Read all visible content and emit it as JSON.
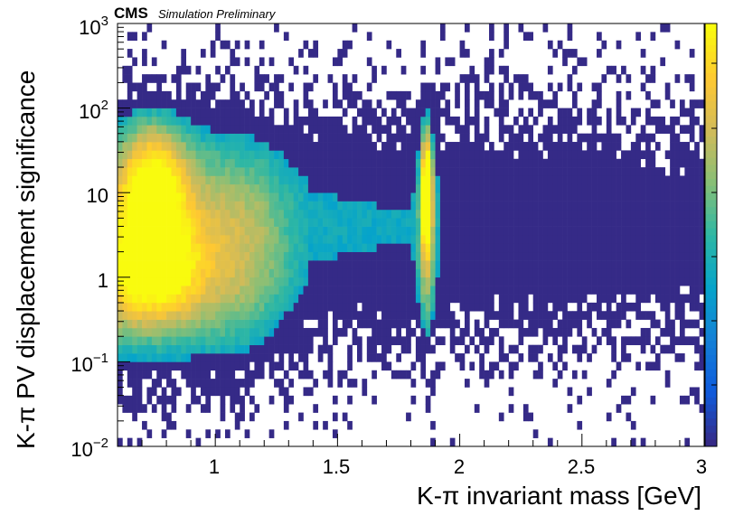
{
  "chart_data": {
    "type": "heatmap",
    "experiment": "CMS",
    "experiment_status": "Simulation Preliminary",
    "xlabel": "K-π invariant mass [GeV]",
    "ylabel": "K-π PV displacement significance",
    "xlim": [
      0.6,
      3.0
    ],
    "ylim": [
      0.01,
      1000
    ],
    "y_scale": "log",
    "z_scale": "log",
    "x_ticks": [
      "1",
      "1.5",
      "2",
      "2.5",
      "3"
    ],
    "y_ticks": [
      {
        "base": "10",
        "exp": "−2"
      },
      {
        "base": "10",
        "exp": "−1"
      },
      {
        "base": "1",
        "exp": ""
      },
      {
        "base": "10",
        "exp": ""
      },
      {
        "base": "10",
        "exp": "2"
      },
      {
        "base": "10",
        "exp": "3"
      }
    ],
    "bins": {
      "nx": 120,
      "ny": 50
    },
    "features": [
      {
        "name": "low-mass band",
        "x_range": [
          0.6,
          1.35
        ],
        "peak_x": 0.75,
        "peak_y": 10
      },
      {
        "name": "D0 peak",
        "x": 1.865,
        "peak_y": 10
      }
    ],
    "colormap": [
      "#352a87",
      "#0f5cdd",
      "#1481d6",
      "#06a4ca",
      "#2eb7a4",
      "#87bf77",
      "#d1bb59",
      "#fec832",
      "#f9fb0e"
    ],
    "grid": false,
    "legend": "none"
  }
}
